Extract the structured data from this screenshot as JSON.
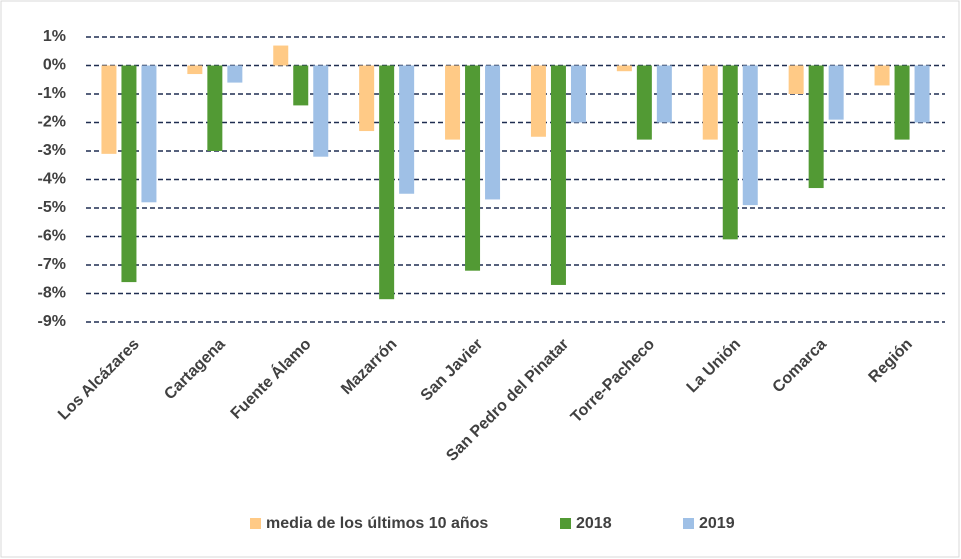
{
  "chart_data": {
    "type": "bar",
    "categories": [
      "Los Alcázares",
      "Cartagena",
      "Fuente Álamo",
      "Mazarrón",
      "San Javier",
      "San Pedro del Pinatar",
      "Torre-Pacheco",
      "La Unión",
      "Comarca",
      "Región"
    ],
    "series": [
      {
        "name": "media de los últimos 10 años",
        "color": "#ffca86",
        "values": [
          -3.1,
          -0.3,
          0.7,
          -2.3,
          -2.6,
          -2.5,
          -0.2,
          -2.6,
          -1.0,
          -0.7
        ]
      },
      {
        "name": "2018",
        "color": "#529a34",
        "values": [
          -7.6,
          -3.0,
          -1.4,
          -8.2,
          -7.2,
          -7.7,
          -2.6,
          -6.1,
          -4.3,
          -2.6
        ]
      },
      {
        "name": "2019",
        "color": "#9fc0e6",
        "values": [
          -4.8,
          -0.6,
          -3.2,
          -4.5,
          -4.7,
          -2.0,
          -2.0,
          -4.9,
          -1.9,
          -2.0
        ]
      }
    ],
    "ylim": [
      -9,
      1
    ],
    "yticks": [
      {
        "value": 1,
        "label": "1%"
      },
      {
        "value": 0,
        "label": "0%"
      },
      {
        "value": -1,
        "label": "-1%"
      },
      {
        "value": -2,
        "label": "-2%"
      },
      {
        "value": -3,
        "label": "-3%"
      },
      {
        "value": -4,
        "label": "-4%"
      },
      {
        "value": -5,
        "label": "-5%"
      },
      {
        "value": -6,
        "label": "-6%"
      },
      {
        "value": -7,
        "label": "-7%"
      },
      {
        "value": -8,
        "label": "-8%"
      },
      {
        "value": -9,
        "label": "-9%"
      }
    ],
    "grid": true,
    "legend": "bottom"
  }
}
